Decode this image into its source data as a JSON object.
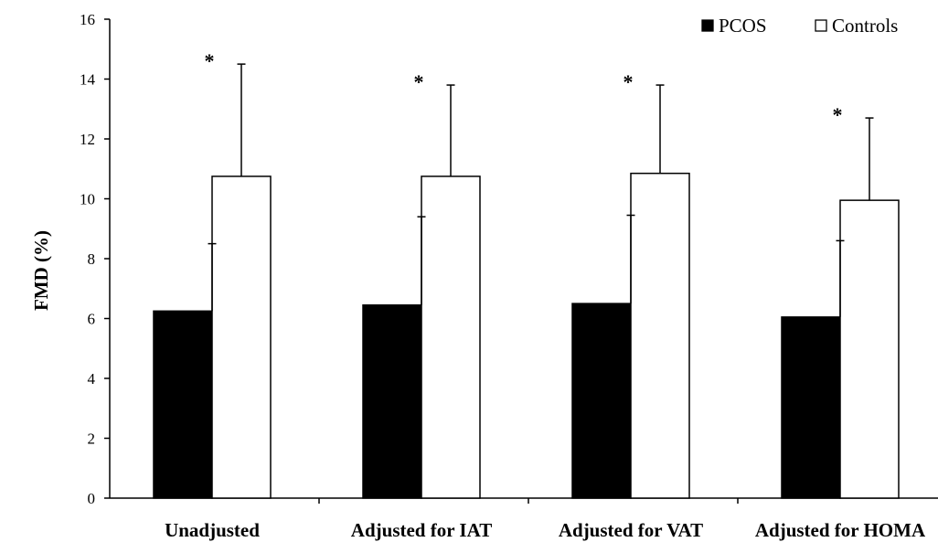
{
  "chart_data": {
    "type": "bar",
    "ylabel": "FMD (%)",
    "ylim": [
      0,
      16
    ],
    "yticks": [
      0,
      2,
      4,
      6,
      8,
      10,
      12,
      14,
      16
    ],
    "grid": false,
    "legend": "top-right",
    "categories": [
      "Unadjusted",
      "Adjusted for IAT",
      "Adjusted for VAT",
      "Adjusted for HOMA"
    ],
    "series": [
      {
        "name": "PCOS",
        "color": "#000000",
        "values": [
          6.25,
          6.45,
          6.5,
          6.05
        ],
        "error": [
          2.25,
          2.95,
          2.95,
          2.55
        ]
      },
      {
        "name": "Controls",
        "color": "#ffffff",
        "values": [
          10.75,
          10.75,
          10.85,
          9.95
        ],
        "error": [
          3.75,
          3.05,
          2.95,
          2.75
        ]
      }
    ],
    "annotations": [
      "*",
      "*",
      "*",
      "*"
    ]
  }
}
